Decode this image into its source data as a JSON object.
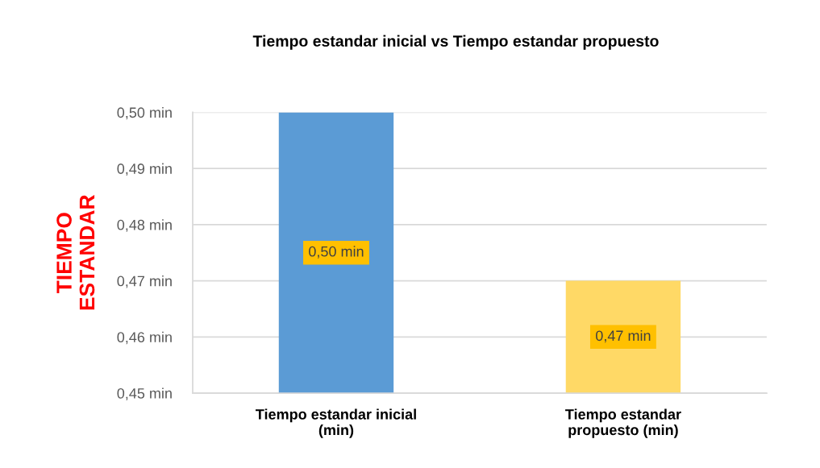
{
  "chart_data": {
    "type": "bar",
    "title": "Tiempo estandar inicial vs Tiempo estandar propuesto",
    "ylabel": "TIEMPO\nESTANDAR",
    "categories": [
      "Tiempo estandar inicial\n(min)",
      "Tiempo estandar\npropuesto (min)"
    ],
    "values": [
      0.5,
      0.47
    ],
    "colors": [
      "#5b9bd5",
      "#ffd966"
    ],
    "value_labels": [
      "0,50 min",
      "0,47 min"
    ],
    "ylim": [
      0.45,
      0.5
    ],
    "yticks": [
      {
        "value": 0.45,
        "label": "0,45 min"
      },
      {
        "value": 0.46,
        "label": "0,46 min"
      },
      {
        "value": 0.47,
        "label": "0,47 min"
      },
      {
        "value": 0.48,
        "label": "0,48 min"
      },
      {
        "value": 0.49,
        "label": "0,49 min"
      },
      {
        "value": 0.5,
        "label": "0,50 min"
      }
    ],
    "grid": "y"
  }
}
